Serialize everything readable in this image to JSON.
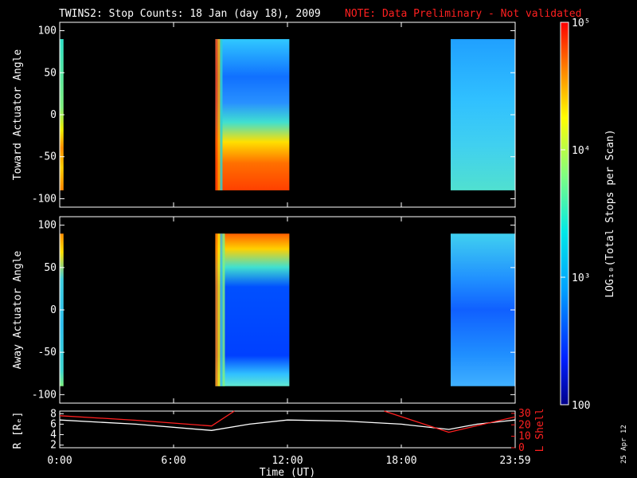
{
  "header": {
    "title": "TWINS2: Stop Counts: 18 Jan (day  18), 2009",
    "note": "NOTE: Data Preliminary - Not validated"
  },
  "colorbar": {
    "label": "LOG₁₀(Total Stops per Scan)",
    "ticks": [
      "10⁵",
      "10⁴",
      "10³",
      "100"
    ]
  },
  "date_stamp": "25 Apr 12",
  "chart_data": [
    {
      "type": "heatmap",
      "ylabel": "Toward Actuator Angle",
      "ylim": [
        -110,
        110
      ],
      "yticks": [
        "100",
        "50",
        "0",
        "-50",
        "-100"
      ],
      "xlim": [
        0,
        24
      ],
      "color_scale": "log",
      "zlim": [
        100,
        100000
      ],
      "segments": [
        {
          "start": 0.0,
          "end": 0.2,
          "kind": "a"
        },
        {
          "start": 8.2,
          "end": 12.1,
          "kind": "b"
        },
        {
          "start": 20.6,
          "end": 24.0,
          "kind": "c"
        }
      ]
    },
    {
      "type": "heatmap",
      "ylabel": "Away Actuator Angle",
      "ylim": [
        -110,
        110
      ],
      "yticks": [
        "100",
        "50",
        "0",
        "-50",
        "-100"
      ],
      "xlim": [
        0,
        24
      ],
      "color_scale": "log",
      "zlim": [
        100,
        100000
      ],
      "segments": [
        {
          "start": 0.0,
          "end": 0.2,
          "kind": "a"
        },
        {
          "start": 8.2,
          "end": 12.1,
          "kind": "b"
        },
        {
          "start": 20.6,
          "end": 24.0,
          "kind": "c"
        }
      ]
    },
    {
      "type": "line",
      "ylabel": "R [Rₑ]",
      "y2label": "L Shell",
      "xlabel": "Time (UT)",
      "xticks": [
        "0:00",
        "6:00",
        "12:00",
        "18:00",
        "23:59"
      ],
      "yticks_left": [
        "8",
        "6",
        "4",
        "2"
      ],
      "yticks_right": [
        "30",
        "20",
        "10",
        "0"
      ],
      "ylim": [
        1.5,
        8.5
      ],
      "y2lim": [
        0,
        32
      ],
      "series": [
        {
          "axis": "left",
          "color": "#ffffff",
          "points": [
            [
              0,
              6.8
            ],
            [
              4,
              6.0
            ],
            [
              8,
              4.8
            ],
            [
              10,
              6.0
            ],
            [
              12,
              6.8
            ],
            [
              15,
              6.6
            ],
            [
              18,
              6.0
            ],
            [
              20.5,
              5.0
            ],
            [
              22,
              6.0
            ],
            [
              24,
              6.8
            ]
          ]
        },
        {
          "axis": "right",
          "color": "#ff2020",
          "points": [
            [
              0,
              28
            ],
            [
              4,
              24
            ],
            [
              8,
              19
            ],
            [
              9.2,
              32
            ]
          ]
        },
        {
          "axis": "right",
          "color": "#ff2020",
          "points": [
            [
              17.1,
              32
            ],
            [
              20.5,
              13.5
            ],
            [
              24,
              27
            ]
          ]
        }
      ]
    }
  ]
}
